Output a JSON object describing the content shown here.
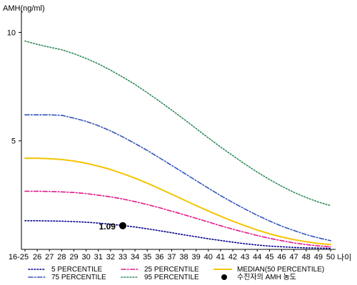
{
  "chart_data": {
    "type": "line",
    "ylabel": "AMH(ng/ml)",
    "xlabel": "나이",
    "ylim": [
      0,
      11
    ],
    "yticks": [
      5,
      10
    ],
    "grid": false,
    "legend_position": "bottom",
    "categories": [
      "16-25",
      "26",
      "27",
      "28",
      "29",
      "30",
      "31",
      "32",
      "33",
      "34",
      "35",
      "36",
      "37",
      "38",
      "39",
      "40",
      "41",
      "42",
      "43",
      "44",
      "45",
      "46",
      "47",
      "48",
      "49",
      "50"
    ],
    "series": [
      {
        "name": "5 PERCENTILE",
        "color": "#00008b",
        "dash": "dotted",
        "values": [
          1.32,
          1.32,
          1.31,
          1.3,
          1.28,
          1.25,
          1.21,
          1.16,
          1.1,
          1.03,
          0.95,
          0.86,
          0.77,
          0.67,
          0.58,
          0.49,
          0.41,
          0.33,
          0.26,
          0.2,
          0.15,
          0.12,
          0.09,
          0.07,
          0.06,
          0.05
        ]
      },
      {
        "name": "25 PERCENTILE",
        "color": "#e0198a",
        "dash": "dashdot",
        "values": [
          2.68,
          2.68,
          2.67,
          2.65,
          2.62,
          2.57,
          2.5,
          2.42,
          2.32,
          2.2,
          2.07,
          1.92,
          1.76,
          1.6,
          1.43,
          1.26,
          1.09,
          0.93,
          0.78,
          0.64,
          0.51,
          0.4,
          0.3,
          0.22,
          0.16,
          0.12
        ]
      },
      {
        "name": "MEDIAN(50 PERCENTILE)",
        "color": "#f5c400",
        "dash": "solid",
        "values": [
          4.2,
          4.2,
          4.18,
          4.14,
          4.07,
          3.97,
          3.84,
          3.68,
          3.49,
          3.28,
          3.05,
          2.8,
          2.54,
          2.28,
          2.02,
          1.77,
          1.53,
          1.3,
          1.09,
          0.89,
          0.72,
          0.57,
          0.45,
          0.35,
          0.27,
          0.22
        ]
      },
      {
        "name": "75 PERCENTILE",
        "color": "#3355bb",
        "dash": "dashdot",
        "values": [
          6.2,
          6.2,
          6.2,
          6.18,
          6.05,
          5.9,
          5.7,
          5.46,
          5.18,
          4.88,
          4.56,
          4.22,
          3.87,
          3.52,
          3.17,
          2.82,
          2.48,
          2.16,
          1.86,
          1.57,
          1.31,
          1.07,
          0.87,
          0.68,
          0.53,
          0.4
        ]
      },
      {
        "name": "95 PERCENTILE",
        "color": "#2e8b57",
        "dash": "dotted",
        "values": [
          9.6,
          9.45,
          9.32,
          9.2,
          9.02,
          8.8,
          8.55,
          8.26,
          7.94,
          7.6,
          7.22,
          6.83,
          6.42,
          6.0,
          5.57,
          5.14,
          4.72,
          4.32,
          3.93,
          3.56,
          3.22,
          2.91,
          2.63,
          2.39,
          2.18,
          2.02
        ]
      }
    ],
    "patient_point": {
      "name": "수진자의 AMH 농도",
      "x": "33",
      "value": 1.09,
      "label": "1.09",
      "color": "#000000"
    }
  }
}
